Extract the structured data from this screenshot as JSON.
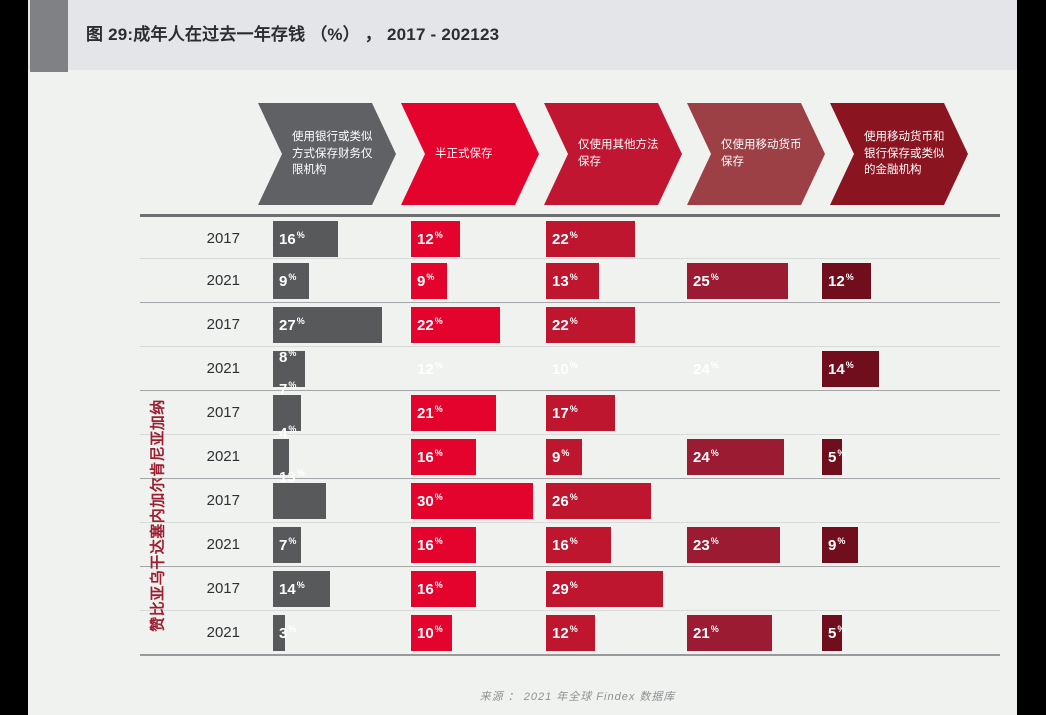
{
  "title": {
    "main": "图 29:成年人在过去一年存钱 （%） ，",
    "years": "2017 - 2021",
    "footnote": "23"
  },
  "legend_arrows": [
    {
      "label": "使用银行或类似方式保存财务仅限机构",
      "color": "#5f6164"
    },
    {
      "label": "半正式保存",
      "color": "#e4032d"
    },
    {
      "label": "仅使用其他方法保存",
      "color": "#c01631"
    },
    {
      "label": "仅使用移动货币保存",
      "color": "#9c4045"
    },
    {
      "label": "使用移动货币和银行保存或类似的金融机构",
      "color": "#8a1420"
    }
  ],
  "side_label": "赞比亚乌干达塞内加尔肯尼亚加纳",
  "source": "来源 ：  2021  年全球 Findex  数据库",
  "chart_data": {
    "type": "bar",
    "unit": "%",
    "title": "图 29:成年人在过去一年存钱 （%）， 2017 - 2021",
    "legend_position": "top",
    "grid": "horizontal-row-rules",
    "xlim": [
      0,
      34
    ],
    "series_labels": [
      "使用银行或类似方式保存财务仅限机构",
      "半正式保存",
      "仅使用其他方法保存",
      "仅使用移动货币保存",
      "使用移动货币和银行保存或类似的金融机构"
    ],
    "column_colors": [
      "#58595b",
      "#e4032d",
      "#bf1630",
      "#9b1b32",
      "#700e1e"
    ],
    "categories": [
      "加纳",
      "肯尼亚",
      "塞内加尔",
      "乌干达",
      "赞比亚"
    ],
    "rows": [
      {
        "group": "加纳",
        "year": "2017",
        "cells": [
          {
            "v": 16
          },
          {
            "v": 12
          },
          {
            "v": 22
          },
          null,
          null
        ]
      },
      {
        "group": "加纳",
        "year": "2021",
        "cells": [
          {
            "v": 9
          },
          {
            "v": 9
          },
          {
            "v": 13
          },
          {
            "v": 25
          },
          {
            "v": 12
          }
        ]
      },
      {
        "group": "肯尼亚",
        "year": "2017",
        "cells": [
          {
            "v": 27
          },
          {
            "v": 22
          },
          {
            "v": 22
          },
          null,
          null
        ]
      },
      {
        "group": "肯尼亚",
        "year": "2021",
        "cells": [
          {
            "v": 8,
            "label_pos": "top"
          },
          {
            "v": 12,
            "bar_hidden": true
          },
          {
            "v": 10,
            "bar_hidden": true
          },
          {
            "v": 24,
            "bar_hidden": true
          },
          {
            "v": 14
          }
        ]
      },
      {
        "group": "塞内加尔",
        "year": "2017",
        "cells": [
          {
            "v": 7,
            "label_pos": "above"
          },
          {
            "v": 21
          },
          {
            "v": 17
          },
          null,
          null
        ]
      },
      {
        "group": "塞内加尔",
        "year": "2021",
        "cells": [
          {
            "v": 4,
            "label_pos": "above"
          },
          {
            "v": 16
          },
          {
            "v": 9
          },
          {
            "v": 24
          },
          {
            "v": 5
          }
        ]
      },
      {
        "group": "乌干达",
        "year": "2017",
        "cells": [
          {
            "v": 13,
            "label_pos": "above"
          },
          {
            "v": 30
          },
          {
            "v": 26
          },
          null,
          null
        ]
      },
      {
        "group": "乌干达",
        "year": "2021",
        "cells": [
          {
            "v": 7
          },
          {
            "v": 16
          },
          {
            "v": 16
          },
          {
            "v": 23
          },
          {
            "v": 9
          }
        ]
      },
      {
        "group": "赞比亚",
        "year": "2017",
        "cells": [
          {
            "v": 14
          },
          {
            "v": 16
          },
          {
            "v": 29
          },
          null,
          null
        ]
      },
      {
        "group": "赞比亚",
        "year": "2021",
        "cells": [
          {
            "v": 3
          },
          {
            "v": 10
          },
          {
            "v": 12
          },
          {
            "v": 21
          },
          {
            "v": 5
          }
        ]
      }
    ]
  }
}
